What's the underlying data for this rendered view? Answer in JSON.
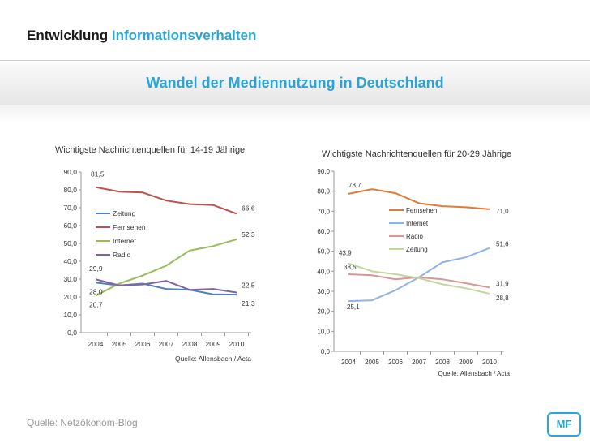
{
  "header": {
    "title_main": "Entwicklung",
    "title_accent": "Informationsverhalten"
  },
  "banner": {
    "title": "Wandel der Mediennutzung in Deutschland"
  },
  "footer": {
    "source": "Quelle: Netzökonom-Blog",
    "logo": "MF"
  },
  "colors": {
    "accent": "#2aa6d6"
  },
  "chart_data": [
    {
      "type": "line",
      "title": "Wichtigste Nachrichtenquellen  für 14-19 Jährige",
      "source": "Quelle: Allensbach / Acta",
      "x": [
        "2004",
        "2005",
        "2006",
        "2007",
        "2008",
        "2009",
        "2010"
      ],
      "ylim": [
        0,
        90
      ],
      "yticks": [
        "0,0",
        "10,0",
        "20,0",
        "30,0",
        "40,0",
        "50,0",
        "60,0",
        "70,0",
        "80,0",
        "90,0"
      ],
      "legend": "center-left",
      "series": [
        {
          "name": "Zeitung",
          "color": "#4f81bd",
          "values": [
            28.0,
            26.5,
            27.5,
            24.5,
            24.0,
            21.5,
            21.3
          ]
        },
        {
          "name": "Fernsehen",
          "color": "#c0504d",
          "values": [
            81.5,
            79.0,
            78.5,
            74.0,
            72.0,
            71.5,
            66.6
          ]
        },
        {
          "name": "Internet",
          "color": "#9bbb59",
          "values": [
            20.7,
            27.5,
            32.0,
            37.5,
            46.0,
            48.5,
            52.3
          ]
        },
        {
          "name": "Radio",
          "color": "#8064a2",
          "values": [
            29.9,
            26.5,
            27.0,
            29.0,
            24.0,
            24.5,
            22.5
          ]
        }
      ],
      "annotations": [
        {
          "text": "81,5",
          "x": "2004",
          "y": 81.5
        },
        {
          "text": "66,6",
          "x": "2010",
          "y": 66.6
        },
        {
          "text": "52,3",
          "x": "2010",
          "y": 52.3
        },
        {
          "text": "29,9",
          "x": "2004",
          "y": 29.9
        },
        {
          "text": "28,0",
          "x": "2004",
          "y": 28.0
        },
        {
          "text": "20,7",
          "x": "2004",
          "y": 20.7
        },
        {
          "text": "22,5",
          "x": "2010",
          "y": 22.5
        },
        {
          "text": "21,3",
          "x": "2010",
          "y": 21.3
        }
      ]
    },
    {
      "type": "line",
      "title": "Wichtigste Nachrichtenquellen  für 20-29 Jährige",
      "source": "Quelle: Allensbach / Acta",
      "x": [
        "2004",
        "2005",
        "2006",
        "2007",
        "2008",
        "2009",
        "2010"
      ],
      "ylim": [
        0,
        90
      ],
      "yticks": [
        "0,0",
        "10,0",
        "20,0",
        "30,0",
        "40,0",
        "50,0",
        "60,0",
        "70,0",
        "80,0",
        "90,0"
      ],
      "legend": "center-right",
      "series": [
        {
          "name": "Fernsehen",
          "color": "#e07b39",
          "values": [
            78.7,
            81.0,
            79.0,
            74.0,
            72.5,
            72.0,
            71.0
          ]
        },
        {
          "name": "Internet",
          "color": "#8eb4e3",
          "values": [
            25.1,
            25.5,
            30.5,
            37.0,
            44.5,
            47.0,
            51.6
          ]
        },
        {
          "name": "Radio",
          "color": "#d99694",
          "values": [
            38.5,
            38.0,
            36.0,
            37.0,
            36.0,
            34.0,
            31.9
          ]
        },
        {
          "name": "Zeitung",
          "color": "#c3d69b",
          "values": [
            43.9,
            40.0,
            38.5,
            36.5,
            33.5,
            31.5,
            28.8
          ]
        }
      ],
      "annotations": [
        {
          "text": "78,7",
          "x": "2004",
          "y": 78.7
        },
        {
          "text": "71,0",
          "x": "2010",
          "y": 71.0
        },
        {
          "text": "43,9",
          "x": "2004",
          "y": 43.9
        },
        {
          "text": "38,5",
          "x": "2004",
          "y": 38.5
        },
        {
          "text": "25,1",
          "x": "2004",
          "y": 25.1
        },
        {
          "text": "51,6",
          "x": "2010",
          "y": 51.6
        },
        {
          "text": "31,9",
          "x": "2010",
          "y": 31.9
        },
        {
          "text": "28,8",
          "x": "2010",
          "y": 28.8
        }
      ]
    }
  ]
}
